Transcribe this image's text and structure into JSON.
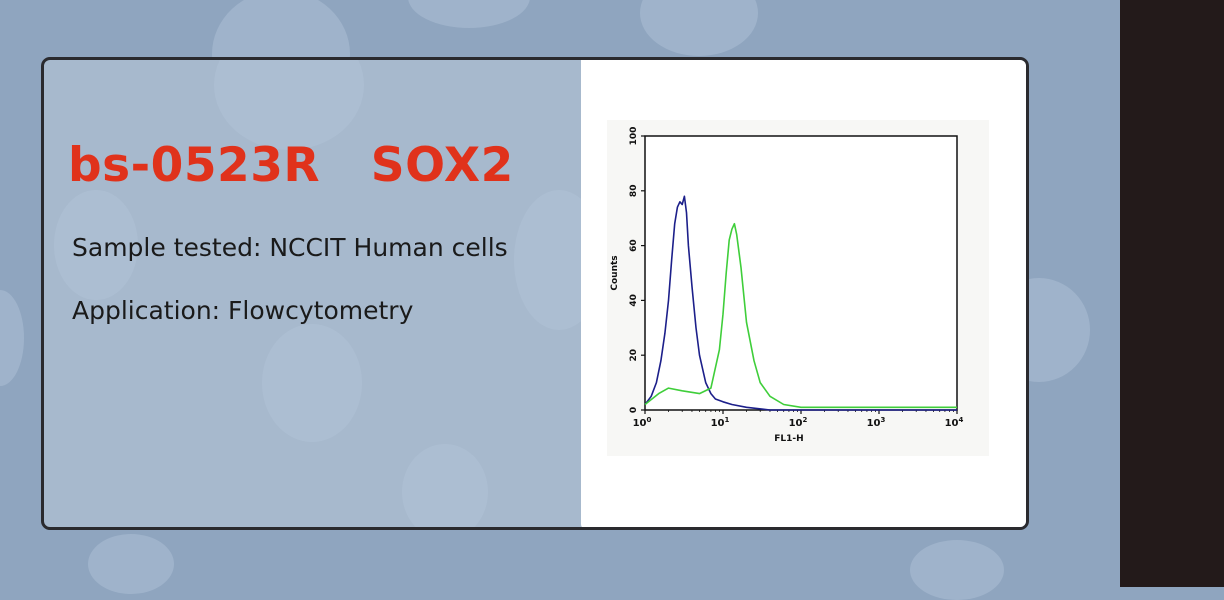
{
  "header": {
    "title": "bs-0523R   SOX2",
    "sample_line": "Sample tested: NCCIT Human cells",
    "application_line": "Application: Flowcytometry"
  },
  "colors": {
    "title": "#e0321b",
    "control_curve": "#1c1f8a",
    "sample_curve": "#3fce3a"
  },
  "chart_data": {
    "type": "line",
    "xlabel": "FL1-H",
    "ylabel": "Counts",
    "x_scale": "log",
    "xlim": [
      1,
      10000
    ],
    "ylim": [
      0,
      100
    ],
    "x_ticks": [
      1,
      10,
      100,
      1000,
      10000
    ],
    "x_tick_labels": [
      {
        "base": "10",
        "exp": "0"
      },
      {
        "base": "10",
        "exp": "1"
      },
      {
        "base": "10",
        "exp": "2"
      },
      {
        "base": "10",
        "exp": "3"
      },
      {
        "base": "10",
        "exp": "4"
      }
    ],
    "y_ticks": [
      "0",
      "20",
      "40",
      "60",
      "80",
      "100"
    ],
    "grid": false,
    "legend": "none",
    "series": [
      {
        "color": "#1c1f8a",
        "x": [
          1.0,
          1.2,
          1.4,
          1.6,
          1.8,
          2.0,
          2.2,
          2.4,
          2.6,
          2.8,
          3.0,
          3.2,
          3.4,
          3.6,
          4.0,
          4.5,
          5.0,
          6.0,
          7.0,
          8.0,
          10.0,
          13.0,
          20.0,
          40.0,
          100.0,
          10000.0
        ],
        "y": [
          2,
          5,
          10,
          18,
          28,
          40,
          55,
          68,
          74,
          76,
          75,
          78,
          72,
          60,
          45,
          30,
          20,
          10,
          6,
          4,
          3,
          2,
          1,
          0,
          0,
          0
        ]
      },
      {
        "color": "#3fce3a",
        "x": [
          1.0,
          1.5,
          2.0,
          3.0,
          5.0,
          7.0,
          9.0,
          10.0,
          11.0,
          12.0,
          13.0,
          14.0,
          15.0,
          17.0,
          20.0,
          25.0,
          30.0,
          40.0,
          60.0,
          100.0,
          1000.0,
          10000.0
        ],
        "y": [
          2,
          6,
          8,
          7,
          6,
          8,
          22,
          35,
          50,
          62,
          66,
          68,
          64,
          52,
          32,
          18,
          10,
          5,
          2,
          1,
          1,
          1
        ]
      }
    ]
  }
}
